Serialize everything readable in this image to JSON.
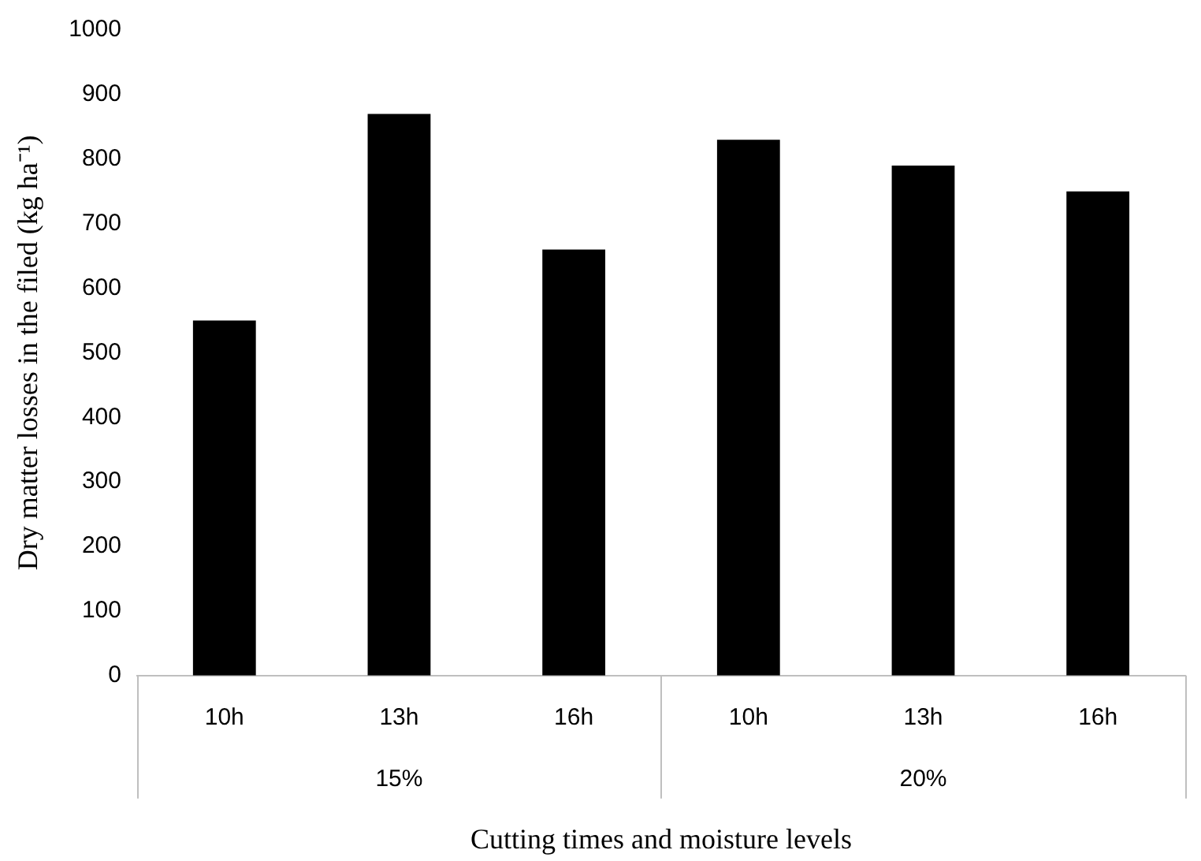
{
  "chart_data": {
    "type": "bar",
    "xlabel": "Cutting times and moisture levels",
    "ylabel": "Dry matter losses in the filed (kg ha⁻¹)",
    "categories": [
      "10h",
      "13h",
      "16h",
      "10h",
      "13h",
      "16h"
    ],
    "values": [
      550,
      870,
      660,
      830,
      790,
      750
    ],
    "color": "#000000",
    "ylim": [
      0,
      1000
    ],
    "yticks": [
      0,
      100,
      200,
      300,
      400,
      500,
      600,
      700,
      800,
      900,
      1000
    ],
    "grid": false,
    "legend": false,
    "annotations": [
      "15%",
      "20%"
    ]
  }
}
